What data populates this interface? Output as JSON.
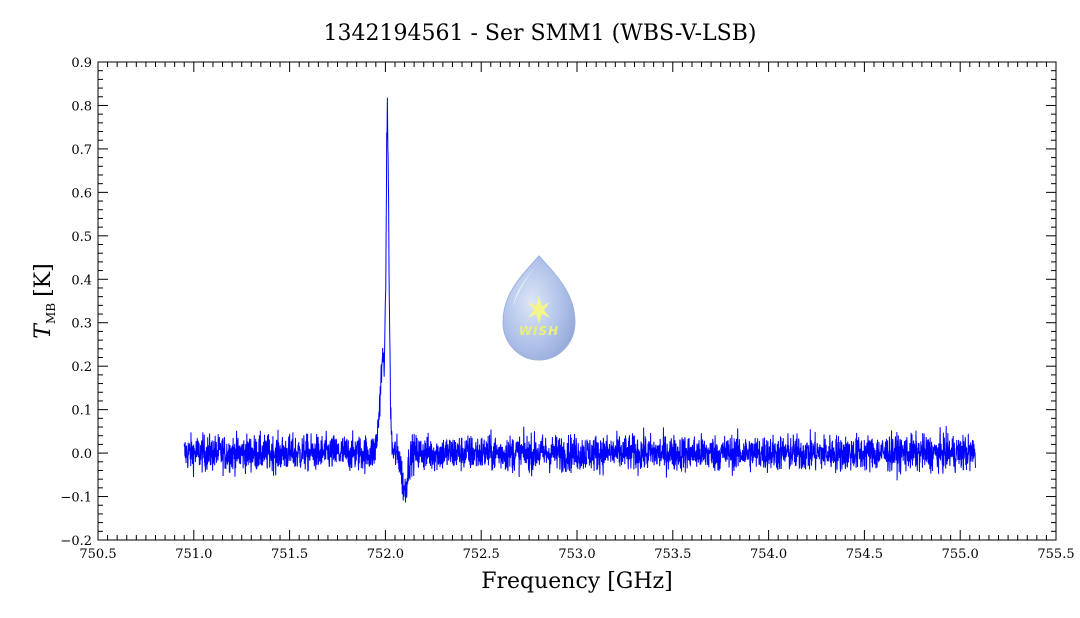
{
  "chart_data": {
    "type": "line",
    "title": "1342194561 - Ser SMM1 (WBS-V-LSB)",
    "xlabel": "Frequency [GHz]",
    "ylabel": "T",
    "ylabel_sub": "MB",
    "ylabel_unit": "[K]",
    "xlim": [
      750.5,
      755.5
    ],
    "ylim": [
      -0.2,
      0.9
    ],
    "x_ticks": [
      750.5,
      751.0,
      751.5,
      752.0,
      752.5,
      753.0,
      753.5,
      754.0,
      754.5,
      755.0,
      755.5
    ],
    "x_tick_labels": [
      "750.5",
      "751.0",
      "751.5",
      "752.0",
      "752.5",
      "753.0",
      "753.5",
      "754.0",
      "754.5",
      "755.0",
      "755.5"
    ],
    "y_ticks": [
      -0.2,
      -0.1,
      0.0,
      0.1,
      0.2,
      0.3,
      0.4,
      0.5,
      0.6,
      0.7,
      0.8,
      0.9
    ],
    "y_tick_labels": [
      "−0.2",
      "−0.1",
      "0.0",
      "0.1",
      "0.2",
      "0.3",
      "0.4",
      "0.5",
      "0.6",
      "0.7",
      "0.8",
      "0.9"
    ],
    "grid": false,
    "series_color": "#0000ff",
    "series": [
      {
        "x_range": [
          750.95,
          755.08
        ],
        "baseline": 0.0,
        "noise_rms": 0.03,
        "peaks": [
          {
            "x": 751.99,
            "y": 0.22
          },
          {
            "x": 752.01,
            "y": 0.85
          },
          {
            "x": 752.02,
            "y": 0.71
          },
          {
            "x": 752.03,
            "y": 0.22
          }
        ],
        "minima": [
          {
            "x": 752.1,
            "y": -0.14
          }
        ]
      }
    ]
  },
  "logo": {
    "text": "WISH",
    "icon": "water-drop-star-icon"
  }
}
